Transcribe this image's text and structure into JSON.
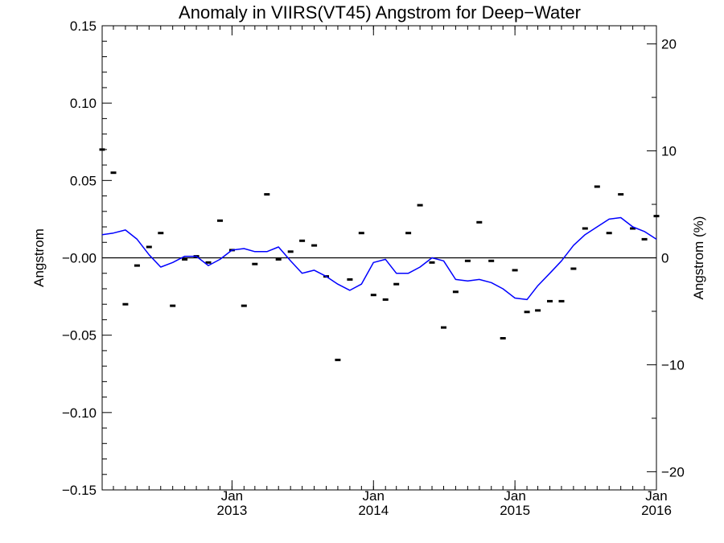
{
  "chart_data": {
    "type": "line",
    "title": "Anomaly in VIIRS(VT45) Angstrom for Deep−Water",
    "ylabel": "Angstrom",
    "y2label": "Angstrom (%)",
    "xlabel": "",
    "xlim": [
      "2012-02-01",
      "2016-01-01"
    ],
    "ylim": [
      -0.15,
      0.15
    ],
    "y2lim": [
      -21.7,
      21.7
    ],
    "x_ticks": [
      {
        "month": "Jan",
        "year": "2013",
        "date": "2013-01-01"
      },
      {
        "month": "Jan",
        "year": "2014",
        "date": "2014-01-01"
      },
      {
        "month": "Jan",
        "year": "2015",
        "date": "2015-01-01"
      },
      {
        "month": "Jan",
        "year": "2016",
        "date": "2016-01-01"
      }
    ],
    "y_ticks": [
      {
        "value": 0.15,
        "label": "0.15"
      },
      {
        "value": 0.1,
        "label": "0.10"
      },
      {
        "value": 0.05,
        "label": "0.05"
      },
      {
        "value": 0.0,
        "label": "−0.00"
      },
      {
        "value": -0.05,
        "label": "−0.05"
      },
      {
        "value": -0.1,
        "label": "−0.10"
      },
      {
        "value": -0.15,
        "label": "−0.15"
      }
    ],
    "y2_ticks": [
      {
        "value": 20,
        "label": "20"
      },
      {
        "value": 10,
        "label": "10"
      },
      {
        "value": 0,
        "label": "0"
      },
      {
        "value": -10,
        "label": "−10"
      },
      {
        "value": -20,
        "label": "−20"
      }
    ],
    "zero_line": true,
    "grid": false,
    "series": [
      {
        "style": "markers",
        "color": "#000000",
        "x": [
          "2012-02-01",
          "2012-03-01",
          "2012-04-01",
          "2012-05-01",
          "2012-06-01",
          "2012-07-01",
          "2012-08-01",
          "2012-09-01",
          "2012-10-01",
          "2012-11-01",
          "2012-12-01",
          "2013-01-01",
          "2013-02-01",
          "2013-03-01",
          "2013-04-01",
          "2013-05-01",
          "2013-06-01",
          "2013-07-01",
          "2013-08-01",
          "2013-09-01",
          "2013-10-01",
          "2013-11-01",
          "2013-12-01",
          "2014-01-01",
          "2014-02-01",
          "2014-03-01",
          "2014-04-01",
          "2014-05-01",
          "2014-06-01",
          "2014-07-01",
          "2014-08-01",
          "2014-09-01",
          "2014-10-01",
          "2014-11-01",
          "2014-12-01",
          "2015-01-01",
          "2015-02-01",
          "2015-03-01",
          "2015-04-01",
          "2015-05-01",
          "2015-06-01",
          "2015-07-01",
          "2015-08-01",
          "2015-09-01",
          "2015-10-01",
          "2015-11-01",
          "2015-12-01",
          "2016-01-01"
        ],
        "values": [
          0.07,
          0.055,
          -0.03,
          -0.005,
          0.007,
          0.016,
          -0.031,
          -0.001,
          0.001,
          -0.003,
          0.024,
          0.005,
          -0.031,
          -0.004,
          0.041,
          -0.001,
          0.004,
          0.011,
          0.008,
          -0.012,
          -0.066,
          -0.014,
          0.016,
          -0.024,
          -0.027,
          -0.017,
          0.016,
          0.034,
          -0.003,
          -0.045,
          -0.022,
          -0.002,
          0.023,
          -0.002,
          -0.052,
          -0.008,
          -0.035,
          -0.034,
          -0.028,
          -0.028,
          -0.007,
          0.019,
          0.046,
          0.016,
          0.041,
          0.019,
          0.012,
          0.027
        ]
      },
      {
        "style": "line",
        "color": "#0000ff",
        "x": [
          "2012-02-01",
          "2012-03-01",
          "2012-04-01",
          "2012-05-01",
          "2012-06-01",
          "2012-07-01",
          "2012-08-01",
          "2012-09-01",
          "2012-10-01",
          "2012-11-01",
          "2012-12-01",
          "2013-01-01",
          "2013-02-01",
          "2013-03-01",
          "2013-04-01",
          "2013-05-01",
          "2013-06-01",
          "2013-07-01",
          "2013-08-01",
          "2013-09-01",
          "2013-10-01",
          "2013-11-01",
          "2013-12-01",
          "2014-01-01",
          "2014-02-01",
          "2014-03-01",
          "2014-04-01",
          "2014-05-01",
          "2014-06-01",
          "2014-07-01",
          "2014-08-01",
          "2014-09-01",
          "2014-10-01",
          "2014-11-01",
          "2014-12-01",
          "2015-01-01",
          "2015-02-01",
          "2015-03-01",
          "2015-04-01",
          "2015-05-01",
          "2015-06-01",
          "2015-07-01",
          "2015-08-01",
          "2015-09-01",
          "2015-10-01",
          "2015-11-01",
          "2015-12-01",
          "2016-01-01"
        ],
        "values": [
          0.015,
          0.016,
          0.018,
          0.012,
          0.002,
          -0.006,
          -0.003,
          0.001,
          0.001,
          -0.005,
          -0.001,
          0.005,
          0.006,
          0.004,
          0.004,
          0.007,
          -0.002,
          -0.01,
          -0.008,
          -0.012,
          -0.017,
          -0.021,
          -0.017,
          -0.003,
          -0.001,
          -0.01,
          -0.01,
          -0.006,
          0.0,
          -0.002,
          -0.014,
          -0.015,
          -0.014,
          -0.016,
          -0.02,
          -0.026,
          -0.027,
          -0.018,
          -0.01,
          -0.002,
          0.008,
          0.015,
          0.02,
          0.025,
          0.026,
          0.02,
          0.017,
          0.012
        ]
      }
    ]
  }
}
